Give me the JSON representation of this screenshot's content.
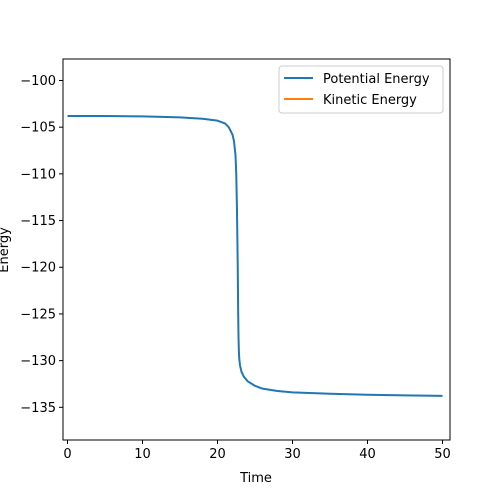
{
  "chart_data": {
    "type": "line",
    "xlabel": "Time",
    "ylabel": "Energy",
    "xlim": [
      -0.6,
      51
    ],
    "ylim": [
      -138.5,
      -97.7
    ],
    "xticks": [
      0,
      10,
      20,
      30,
      40,
      50
    ],
    "yticks": [
      -100,
      -105,
      -110,
      -115,
      -120,
      -125,
      -130,
      -135
    ],
    "xtick_labels": [
      "0",
      "10",
      "20",
      "30",
      "40",
      "50"
    ],
    "ytick_labels": [
      "−100",
      "−105",
      "−110",
      "−115",
      "−120",
      "−125",
      "−130",
      "−135"
    ],
    "grid": false,
    "legend_position": "top-right",
    "series": [
      {
        "name": "Potential Energy",
        "color": "#1f77b4",
        "x": [
          0,
          5,
          10,
          15,
          18,
          20,
          21,
          21.5,
          22,
          22.2,
          22.4,
          22.5,
          22.6,
          22.7,
          22.75,
          22.8,
          22.85,
          22.9,
          23,
          23.2,
          23.5,
          24,
          25,
          26,
          28,
          30,
          35,
          40,
          45,
          50
        ],
        "y": [
          -103.8,
          -103.8,
          -103.85,
          -103.95,
          -104.1,
          -104.3,
          -104.6,
          -105.0,
          -105.8,
          -106.5,
          -108.0,
          -110.0,
          -114.0,
          -120.0,
          -124.5,
          -127.5,
          -129.0,
          -129.8,
          -130.5,
          -131.2,
          -131.7,
          -132.2,
          -132.7,
          -133.0,
          -133.25,
          -133.4,
          -133.55,
          -133.65,
          -133.72,
          -133.78
        ]
      },
      {
        "name": "Kinetic Energy",
        "color": "#ff7f0e",
        "x": [],
        "y": []
      }
    ]
  }
}
